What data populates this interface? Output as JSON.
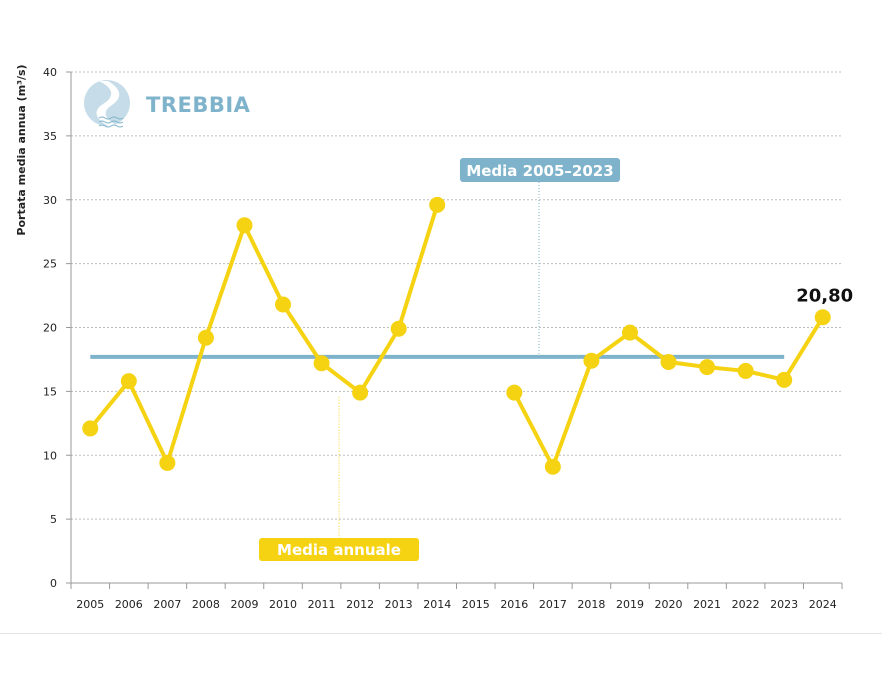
{
  "chart_data": {
    "type": "line",
    "title": "TREBBIA",
    "ylabel": "Portata media annua (m³/s)",
    "xlabel": "",
    "ylim": [
      0,
      40
    ],
    "yticks": [
      "0",
      "5",
      "10",
      "15",
      "20",
      "25",
      "30",
      "35",
      "40"
    ],
    "categories": [
      "2005",
      "2006",
      "2007",
      "2008",
      "2009",
      "2010",
      "2011",
      "2012",
      "2013",
      "2014",
      "2015",
      "2016",
      "2017",
      "2018",
      "2019",
      "2020",
      "2021",
      "2022",
      "2023",
      "2024"
    ],
    "grid": true,
    "series": [
      {
        "name": "Media annuale",
        "color": "#f5d312",
        "values": [
          12.1,
          15.8,
          9.4,
          19.2,
          28.0,
          21.8,
          17.2,
          14.9,
          19.9,
          29.6,
          null,
          14.9,
          9.1,
          17.4,
          19.6,
          17.3,
          16.9,
          16.6,
          15.9,
          20.8
        ]
      },
      {
        "name": "Media 2005–2023",
        "color": "#7fb3cb",
        "x_from": "2005",
        "x_to": "2023",
        "value": 17.7
      }
    ],
    "annotations": [
      {
        "text": "20,80",
        "category": "2024"
      }
    ]
  }
}
